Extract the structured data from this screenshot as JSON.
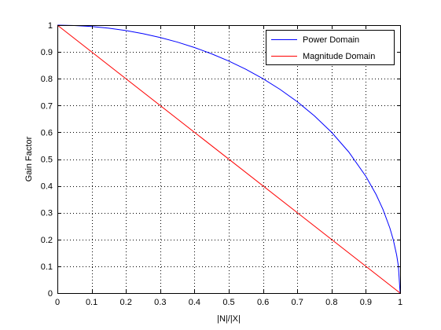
{
  "chart_data": {
    "type": "line",
    "title": "",
    "xlabel": "|N|/|X|",
    "ylabel": "Gain Factor",
    "xlim": [
      0,
      1
    ],
    "ylim": [
      0,
      1
    ],
    "xticks": [
      "0",
      "0.1",
      "0.2",
      "0.3",
      "0.4",
      "0.5",
      "0.6",
      "0.7",
      "0.8",
      "0.9",
      "1"
    ],
    "yticks": [
      "0",
      "0.1",
      "0.2",
      "0.3",
      "0.4",
      "0.5",
      "0.6",
      "0.7",
      "0.8",
      "0.9",
      "1"
    ],
    "grid": true,
    "legend_position": "top-right",
    "series": [
      {
        "name": "Power Domain",
        "color": "#0000ff",
        "x": [
          0,
          0.05,
          0.1,
          0.15,
          0.2,
          0.25,
          0.3,
          0.35,
          0.4,
          0.45,
          0.5,
          0.55,
          0.6,
          0.65,
          0.7,
          0.75,
          0.8,
          0.85,
          0.9,
          0.93,
          0.95,
          0.97,
          0.98,
          0.99,
          0.995,
          1
        ],
        "y": [
          1,
          0.9987,
          0.995,
          0.9887,
          0.9798,
          0.9682,
          0.9539,
          0.9368,
          0.9165,
          0.893,
          0.866,
          0.8352,
          0.8,
          0.7599,
          0.7141,
          0.6614,
          0.6,
          0.5268,
          0.4359,
          0.3676,
          0.3122,
          0.2431,
          0.199,
          0.1411,
          0.0999,
          0
        ]
      },
      {
        "name": "Magnitude Domain",
        "color": "#ff0000",
        "x": [
          0,
          1
        ],
        "y": [
          1,
          0
        ]
      }
    ]
  }
}
